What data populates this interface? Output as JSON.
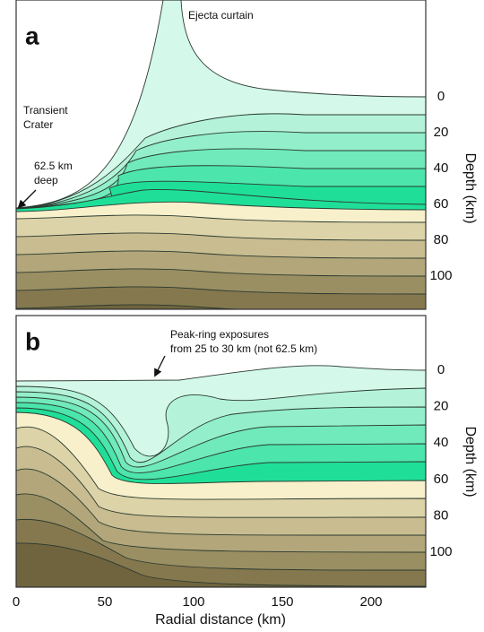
{
  "panels": [
    {
      "label": "a",
      "annotations": [
        {
          "lines": [
            "Ejecta curtain"
          ]
        },
        {
          "lines": [
            "Transient",
            "Crater"
          ]
        },
        {
          "lines": [
            "62.5 km",
            "deep"
          ]
        }
      ],
      "depth_axis": {
        "title": "Depth (km)",
        "ticks": [
          0,
          20,
          40,
          60,
          80,
          100
        ]
      }
    },
    {
      "label": "b",
      "annotations": [
        {
          "lines": [
            "Peak-ring exposures",
            "from 25 to 30 km (not 62.5 km)"
          ]
        }
      ],
      "depth_axis": {
        "title": "Depth (km)",
        "ticks": [
          0,
          20,
          40,
          60,
          80,
          100
        ]
      }
    }
  ],
  "x_axis": {
    "title": "Radial distance (km)",
    "ticks": [
      0,
      50,
      100,
      150,
      200
    ]
  }
}
